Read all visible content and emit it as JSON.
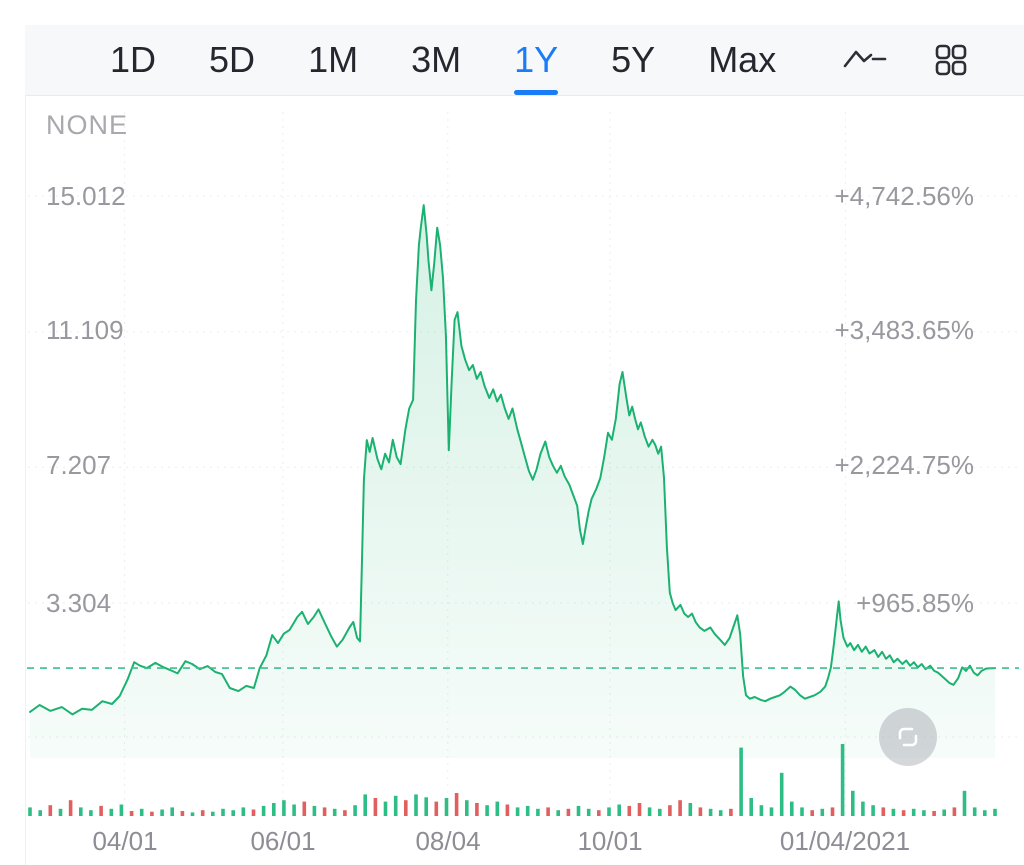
{
  "toolbar": {
    "tabs": [
      {
        "label": "1D",
        "active": false
      },
      {
        "label": "5D",
        "active": false
      },
      {
        "label": "1M",
        "active": false
      },
      {
        "label": "3M",
        "active": false
      },
      {
        "label": "1Y",
        "active": true
      },
      {
        "label": "5Y",
        "active": false
      },
      {
        "label": "Max",
        "active": false
      }
    ],
    "icons": [
      {
        "name": "line-chart-type-icon"
      },
      {
        "name": "chart-layout-grid-icon"
      }
    ]
  },
  "chart": {
    "overlay_label": "NONE"
  },
  "chart_data": {
    "type": "area",
    "y_ticks": [
      {
        "price": 15.012,
        "pct": "+4,742.56%"
      },
      {
        "price": 11.109,
        "pct": "+3,483.65%"
      },
      {
        "price": 7.207,
        "pct": "+2,224.75%"
      },
      {
        "price": 3.304,
        "pct": "+965.85%"
      }
    ],
    "x_ticks": [
      {
        "label": "04/01",
        "u": 0.098
      },
      {
        "label": "06/01",
        "u": 0.262
      },
      {
        "label": "08/04",
        "u": 0.433
      },
      {
        "label": "10/01",
        "u": 0.601
      },
      {
        "label": "01/04/2021",
        "u": 0.845
      }
    ],
    "baseline_price": 1.43,
    "ylim": [
      0,
      16.4
    ],
    "legend": "none",
    "grid": "dotted",
    "points": [
      [
        0.0,
        0.17
      ],
      [
        0.01,
        0.37
      ],
      [
        0.021,
        0.2
      ],
      [
        0.033,
        0.31
      ],
      [
        0.044,
        0.1
      ],
      [
        0.054,
        0.26
      ],
      [
        0.064,
        0.23
      ],
      [
        0.075,
        0.48
      ],
      [
        0.085,
        0.4
      ],
      [
        0.093,
        0.63
      ],
      [
        0.101,
        1.1
      ],
      [
        0.108,
        1.6
      ],
      [
        0.114,
        1.5
      ],
      [
        0.121,
        1.43
      ],
      [
        0.13,
        1.58
      ],
      [
        0.138,
        1.46
      ],
      [
        0.145,
        1.38
      ],
      [
        0.153,
        1.28
      ],
      [
        0.161,
        1.63
      ],
      [
        0.168,
        1.55
      ],
      [
        0.176,
        1.4
      ],
      [
        0.184,
        1.49
      ],
      [
        0.192,
        1.32
      ],
      [
        0.199,
        1.26
      ],
      [
        0.207,
        0.86
      ],
      [
        0.216,
        0.77
      ],
      [
        0.224,
        0.92
      ],
      [
        0.232,
        0.86
      ],
      [
        0.238,
        1.43
      ],
      [
        0.245,
        1.8
      ],
      [
        0.251,
        2.38
      ],
      [
        0.257,
        2.15
      ],
      [
        0.263,
        2.42
      ],
      [
        0.269,
        2.53
      ],
      [
        0.277,
        2.9
      ],
      [
        0.282,
        3.05
      ],
      [
        0.288,
        2.7
      ],
      [
        0.294,
        2.9
      ],
      [
        0.299,
        3.12
      ],
      [
        0.306,
        2.7
      ],
      [
        0.312,
        2.35
      ],
      [
        0.318,
        2.05
      ],
      [
        0.324,
        2.25
      ],
      [
        0.331,
        2.6
      ],
      [
        0.335,
        2.76
      ],
      [
        0.339,
        2.3
      ],
      [
        0.342,
        2.2
      ],
      [
        0.344,
        4.55
      ],
      [
        0.346,
        6.85
      ],
      [
        0.349,
        7.99
      ],
      [
        0.352,
        7.65
      ],
      [
        0.355,
        8.05
      ],
      [
        0.36,
        7.45
      ],
      [
        0.364,
        7.15
      ],
      [
        0.368,
        7.6
      ],
      [
        0.372,
        7.35
      ],
      [
        0.376,
        8.0
      ],
      [
        0.38,
        7.5
      ],
      [
        0.384,
        7.3
      ],
      [
        0.389,
        8.3
      ],
      [
        0.393,
        8.9
      ],
      [
        0.397,
        9.15
      ],
      [
        0.4,
        12.0
      ],
      [
        0.403,
        13.6
      ],
      [
        0.405,
        14.1
      ],
      [
        0.408,
        14.75
      ],
      [
        0.411,
        13.9
      ],
      [
        0.413,
        13.15
      ],
      [
        0.416,
        12.3
      ],
      [
        0.419,
        13.1
      ],
      [
        0.422,
        14.1
      ],
      [
        0.425,
        13.6
      ],
      [
        0.428,
        12.65
      ],
      [
        0.431,
        11.0
      ],
      [
        0.434,
        7.7
      ],
      [
        0.437,
        9.7
      ],
      [
        0.44,
        11.45
      ],
      [
        0.443,
        11.67
      ],
      [
        0.447,
        10.7
      ],
      [
        0.451,
        10.3
      ],
      [
        0.455,
        10.0
      ],
      [
        0.459,
        10.15
      ],
      [
        0.463,
        9.75
      ],
      [
        0.467,
        9.95
      ],
      [
        0.471,
        9.55
      ],
      [
        0.476,
        9.2
      ],
      [
        0.48,
        9.45
      ],
      [
        0.484,
        9.1
      ],
      [
        0.488,
        9.3
      ],
      [
        0.492,
        8.9
      ],
      [
        0.496,
        8.6
      ],
      [
        0.5,
        8.9
      ],
      [
        0.505,
        8.3
      ],
      [
        0.509,
        7.9
      ],
      [
        0.513,
        7.5
      ],
      [
        0.517,
        7.1
      ],
      [
        0.521,
        6.85
      ],
      [
        0.525,
        7.15
      ],
      [
        0.529,
        7.6
      ],
      [
        0.534,
        7.95
      ],
      [
        0.538,
        7.5
      ],
      [
        0.542,
        7.25
      ],
      [
        0.546,
        7.05
      ],
      [
        0.55,
        7.25
      ],
      [
        0.554,
        6.95
      ],
      [
        0.559,
        6.7
      ],
      [
        0.563,
        6.4
      ],
      [
        0.567,
        6.1
      ],
      [
        0.57,
        5.4
      ],
      [
        0.573,
        5.0
      ],
      [
        0.576,
        5.5
      ],
      [
        0.579,
        5.95
      ],
      [
        0.582,
        6.3
      ],
      [
        0.587,
        6.6
      ],
      [
        0.591,
        6.9
      ],
      [
        0.595,
        7.5
      ],
      [
        0.599,
        8.2
      ],
      [
        0.603,
        8.0
      ],
      [
        0.607,
        8.6
      ],
      [
        0.611,
        9.6
      ],
      [
        0.614,
        9.95
      ],
      [
        0.618,
        9.2
      ],
      [
        0.621,
        8.7
      ],
      [
        0.624,
        8.95
      ],
      [
        0.627,
        8.6
      ],
      [
        0.63,
        8.3
      ],
      [
        0.633,
        8.5
      ],
      [
        0.637,
        8.1
      ],
      [
        0.641,
        7.8
      ],
      [
        0.645,
        8.0
      ],
      [
        0.648,
        7.85
      ],
      [
        0.651,
        7.6
      ],
      [
        0.654,
        7.8
      ],
      [
        0.657,
        6.9
      ],
      [
        0.66,
        4.9
      ],
      [
        0.663,
        3.6
      ],
      [
        0.666,
        3.3
      ],
      [
        0.669,
        3.1
      ],
      [
        0.674,
        3.25
      ],
      [
        0.678,
        3.0
      ],
      [
        0.682,
        2.9
      ],
      [
        0.686,
        3.0
      ],
      [
        0.69,
        2.75
      ],
      [
        0.694,
        2.6
      ],
      [
        0.699,
        2.5
      ],
      [
        0.705,
        2.6
      ],
      [
        0.71,
        2.4
      ],
      [
        0.715,
        2.25
      ],
      [
        0.72,
        2.1
      ],
      [
        0.725,
        2.3
      ],
      [
        0.73,
        2.7
      ],
      [
        0.733,
        2.95
      ],
      [
        0.736,
        2.4
      ],
      [
        0.739,
        1.2
      ],
      [
        0.742,
        0.65
      ],
      [
        0.746,
        0.55
      ],
      [
        0.751,
        0.6
      ],
      [
        0.757,
        0.52
      ],
      [
        0.762,
        0.48
      ],
      [
        0.767,
        0.55
      ],
      [
        0.772,
        0.6
      ],
      [
        0.777,
        0.65
      ],
      [
        0.782,
        0.75
      ],
      [
        0.788,
        0.9
      ],
      [
        0.793,
        0.8
      ],
      [
        0.798,
        0.65
      ],
      [
        0.803,
        0.55
      ],
      [
        0.808,
        0.6
      ],
      [
        0.813,
        0.65
      ],
      [
        0.819,
        0.75
      ],
      [
        0.824,
        0.9
      ],
      [
        0.827,
        1.15
      ],
      [
        0.83,
        1.45
      ],
      [
        0.833,
        2.1
      ],
      [
        0.836,
        2.85
      ],
      [
        0.838,
        3.35
      ],
      [
        0.84,
        2.8
      ],
      [
        0.843,
        2.3
      ],
      [
        0.847,
        2.05
      ],
      [
        0.85,
        2.15
      ],
      [
        0.854,
        1.95
      ],
      [
        0.858,
        2.1
      ],
      [
        0.862,
        1.9
      ],
      [
        0.866,
        2.05
      ],
      [
        0.87,
        1.85
      ],
      [
        0.875,
        1.95
      ],
      [
        0.879,
        1.75
      ],
      [
        0.883,
        1.9
      ],
      [
        0.887,
        1.7
      ],
      [
        0.891,
        1.8
      ],
      [
        0.895,
        1.6
      ],
      [
        0.899,
        1.7
      ],
      [
        0.904,
        1.55
      ],
      [
        0.908,
        1.65
      ],
      [
        0.912,
        1.5
      ],
      [
        0.916,
        1.6
      ],
      [
        0.92,
        1.45
      ],
      [
        0.924,
        1.55
      ],
      [
        0.928,
        1.4
      ],
      [
        0.933,
        1.5
      ],
      [
        0.937,
        1.35
      ],
      [
        0.941,
        1.3
      ],
      [
        0.945,
        1.2
      ],
      [
        0.949,
        1.1
      ],
      [
        0.953,
        1.0
      ],
      [
        0.957,
        0.95
      ],
      [
        0.962,
        1.15
      ],
      [
        0.966,
        1.45
      ],
      [
        0.97,
        1.35
      ],
      [
        0.974,
        1.5
      ],
      [
        0.978,
        1.3
      ],
      [
        0.982,
        1.22
      ],
      [
        0.986,
        1.35
      ],
      [
        0.991,
        1.42
      ],
      [
        1.0,
        1.43
      ]
    ],
    "volume": {
      "heights": [
        0.12,
        0.08,
        0.15,
        0.1,
        0.22,
        0.12,
        0.08,
        0.14,
        0.1,
        0.16,
        0.07,
        0.1,
        0.06,
        0.09,
        0.12,
        0.07,
        0.05,
        0.08,
        0.06,
        0.1,
        0.08,
        0.12,
        0.09,
        0.14,
        0.18,
        0.22,
        0.16,
        0.2,
        0.14,
        0.12,
        0.1,
        0.08,
        0.15,
        0.3,
        0.25,
        0.2,
        0.28,
        0.22,
        0.3,
        0.26,
        0.2,
        0.25,
        0.32,
        0.22,
        0.18,
        0.15,
        0.2,
        0.16,
        0.12,
        0.14,
        0.1,
        0.12,
        0.08,
        0.1,
        0.14,
        0.1,
        0.08,
        0.12,
        0.16,
        0.14,
        0.18,
        0.12,
        0.1,
        0.15,
        0.22,
        0.18,
        0.12,
        0.1,
        0.08,
        0.1,
        0.95,
        0.25,
        0.15,
        0.12,
        0.6,
        0.2,
        0.12,
        0.08,
        0.1,
        0.12,
        1.0,
        0.35,
        0.2,
        0.15,
        0.12,
        0.1,
        0.08,
        0.1,
        0.08,
        0.07,
        0.09,
        0.12,
        0.35,
        0.12,
        0.08,
        0.1
      ],
      "colors": "ggrgrggrggrgrggrgrggggrggggrgrgrggrggrggrgrgrggrgggrgrggrggrrggrrgrggrgggggggrgrggggrgrggrgrgggg"
    }
  },
  "colors": {
    "accent_blue": "#1a7cf7",
    "line_green": "#1bb271",
    "baseline_green": "#3fbd8c",
    "volume_up": "#2fbd86",
    "volume_down": "#e25f5f",
    "toolbar_bg": "#f7f8fa",
    "grid_line": "#ededf2",
    "label_gray": "#98989f"
  }
}
